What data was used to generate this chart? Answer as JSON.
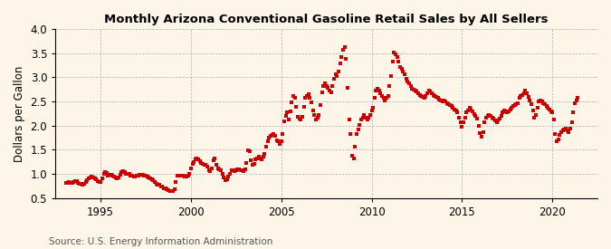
{
  "title": "Monthly Arizona Conventional Gasoline Retail Sales by All Sellers",
  "ylabel": "Dollars per Gallon",
  "source": "Source: U.S. Energy Information Administration",
  "background_color": "#fdf6e8",
  "marker_color": "#cc0000",
  "ylim": [
    0.5,
    4.0
  ],
  "yticks": [
    0.5,
    1.0,
    1.5,
    2.0,
    2.5,
    3.0,
    3.5,
    4.0
  ],
  "xlim_start": 1992.5,
  "xlim_end": 2022.5,
  "xticks": [
    1995,
    2000,
    2005,
    2010,
    2015,
    2020
  ],
  "data": [
    [
      1993.08,
      0.81
    ],
    [
      1993.17,
      0.82
    ],
    [
      1993.25,
      0.83
    ],
    [
      1993.33,
      0.82
    ],
    [
      1993.42,
      0.82
    ],
    [
      1993.5,
      0.83
    ],
    [
      1993.58,
      0.86
    ],
    [
      1993.67,
      0.85
    ],
    [
      1993.75,
      0.82
    ],
    [
      1993.83,
      0.8
    ],
    [
      1993.92,
      0.79
    ],
    [
      1994.0,
      0.78
    ],
    [
      1994.08,
      0.8
    ],
    [
      1994.17,
      0.83
    ],
    [
      1994.25,
      0.87
    ],
    [
      1994.33,
      0.9
    ],
    [
      1994.42,
      0.93
    ],
    [
      1994.5,
      0.95
    ],
    [
      1994.58,
      0.93
    ],
    [
      1994.67,
      0.9
    ],
    [
      1994.75,
      0.88
    ],
    [
      1994.83,
      0.86
    ],
    [
      1994.92,
      0.84
    ],
    [
      1995.0,
      0.84
    ],
    [
      1995.08,
      0.91
    ],
    [
      1995.17,
      1.0
    ],
    [
      1995.25,
      1.04
    ],
    [
      1995.33,
      1.02
    ],
    [
      1995.42,
      0.97
    ],
    [
      1995.5,
      0.98
    ],
    [
      1995.58,
      0.99
    ],
    [
      1995.67,
      0.96
    ],
    [
      1995.75,
      0.94
    ],
    [
      1995.83,
      0.93
    ],
    [
      1995.92,
      0.91
    ],
    [
      1996.0,
      0.93
    ],
    [
      1996.08,
      0.98
    ],
    [
      1996.17,
      1.03
    ],
    [
      1996.25,
      1.06
    ],
    [
      1996.33,
      1.04
    ],
    [
      1996.42,
      1.0
    ],
    [
      1996.5,
      1.01
    ],
    [
      1996.58,
      1.0
    ],
    [
      1996.67,
      0.97
    ],
    [
      1996.75,
      0.97
    ],
    [
      1996.83,
      0.95
    ],
    [
      1996.92,
      0.95
    ],
    [
      1997.0,
      0.96
    ],
    [
      1997.08,
      0.97
    ],
    [
      1997.17,
      0.98
    ],
    [
      1997.25,
      0.99
    ],
    [
      1997.33,
      0.98
    ],
    [
      1997.42,
      0.97
    ],
    [
      1997.5,
      0.96
    ],
    [
      1997.58,
      0.95
    ],
    [
      1997.67,
      0.93
    ],
    [
      1997.75,
      0.91
    ],
    [
      1997.83,
      0.89
    ],
    [
      1997.92,
      0.87
    ],
    [
      1998.0,
      0.83
    ],
    [
      1998.08,
      0.79
    ],
    [
      1998.17,
      0.78
    ],
    [
      1998.25,
      0.77
    ],
    [
      1998.33,
      0.74
    ],
    [
      1998.42,
      0.73
    ],
    [
      1998.5,
      0.71
    ],
    [
      1998.58,
      0.7
    ],
    [
      1998.67,
      0.68
    ],
    [
      1998.75,
      0.66
    ],
    [
      1998.83,
      0.65
    ],
    [
      1998.92,
      0.64
    ],
    [
      1999.0,
      0.65
    ],
    [
      1999.08,
      0.68
    ],
    [
      1999.17,
      0.84
    ],
    [
      1999.25,
      0.97
    ],
    [
      1999.33,
      0.97
    ],
    [
      1999.42,
      0.97
    ],
    [
      1999.5,
      0.97
    ],
    [
      1999.58,
      0.96
    ],
    [
      1999.67,
      0.95
    ],
    [
      1999.75,
      0.95
    ],
    [
      1999.83,
      0.96
    ],
    [
      1999.92,
      1.0
    ],
    [
      2000.0,
      1.12
    ],
    [
      2000.08,
      1.2
    ],
    [
      2000.17,
      1.25
    ],
    [
      2000.25,
      1.3
    ],
    [
      2000.33,
      1.32
    ],
    [
      2000.42,
      1.3
    ],
    [
      2000.5,
      1.27
    ],
    [
      2000.58,
      1.22
    ],
    [
      2000.67,
      1.2
    ],
    [
      2000.75,
      1.19
    ],
    [
      2000.83,
      1.18
    ],
    [
      2000.92,
      1.15
    ],
    [
      2001.0,
      1.08
    ],
    [
      2001.08,
      1.05
    ],
    [
      2001.17,
      1.12
    ],
    [
      2001.25,
      1.28
    ],
    [
      2001.33,
      1.32
    ],
    [
      2001.42,
      1.18
    ],
    [
      2001.5,
      1.12
    ],
    [
      2001.58,
      1.1
    ],
    [
      2001.67,
      1.07
    ],
    [
      2001.75,
      1.0
    ],
    [
      2001.83,
      0.92
    ],
    [
      2001.92,
      0.87
    ],
    [
      2002.0,
      0.89
    ],
    [
      2002.08,
      0.95
    ],
    [
      2002.17,
      1.0
    ],
    [
      2002.25,
      1.08
    ],
    [
      2002.33,
      1.08
    ],
    [
      2002.42,
      1.05
    ],
    [
      2002.5,
      1.07
    ],
    [
      2002.58,
      1.1
    ],
    [
      2002.67,
      1.1
    ],
    [
      2002.75,
      1.08
    ],
    [
      2002.83,
      1.07
    ],
    [
      2002.92,
      1.05
    ],
    [
      2003.0,
      1.09
    ],
    [
      2003.08,
      1.22
    ],
    [
      2003.17,
      1.48
    ],
    [
      2003.25,
      1.47
    ],
    [
      2003.33,
      1.28
    ],
    [
      2003.42,
      1.18
    ],
    [
      2003.5,
      1.2
    ],
    [
      2003.58,
      1.3
    ],
    [
      2003.67,
      1.32
    ],
    [
      2003.75,
      1.35
    ],
    [
      2003.83,
      1.32
    ],
    [
      2003.92,
      1.3
    ],
    [
      2004.0,
      1.36
    ],
    [
      2004.08,
      1.42
    ],
    [
      2004.17,
      1.57
    ],
    [
      2004.25,
      1.67
    ],
    [
      2004.33,
      1.75
    ],
    [
      2004.42,
      1.78
    ],
    [
      2004.5,
      1.8
    ],
    [
      2004.58,
      1.82
    ],
    [
      2004.67,
      1.78
    ],
    [
      2004.75,
      1.7
    ],
    [
      2004.83,
      1.68
    ],
    [
      2004.92,
      1.62
    ],
    [
      2005.0,
      1.68
    ],
    [
      2005.08,
      1.82
    ],
    [
      2005.17,
      2.08
    ],
    [
      2005.25,
      2.2
    ],
    [
      2005.33,
      2.28
    ],
    [
      2005.42,
      2.12
    ],
    [
      2005.5,
      2.3
    ],
    [
      2005.58,
      2.48
    ],
    [
      2005.67,
      2.62
    ],
    [
      2005.75,
      2.57
    ],
    [
      2005.83,
      2.38
    ],
    [
      2005.92,
      2.18
    ],
    [
      2006.0,
      2.14
    ],
    [
      2006.08,
      2.12
    ],
    [
      2006.17,
      2.18
    ],
    [
      2006.25,
      2.38
    ],
    [
      2006.33,
      2.58
    ],
    [
      2006.42,
      2.62
    ],
    [
      2006.5,
      2.65
    ],
    [
      2006.58,
      2.57
    ],
    [
      2006.67,
      2.48
    ],
    [
      2006.75,
      2.32
    ],
    [
      2006.83,
      2.22
    ],
    [
      2006.92,
      2.12
    ],
    [
      2007.0,
      2.17
    ],
    [
      2007.08,
      2.22
    ],
    [
      2007.17,
      2.42
    ],
    [
      2007.25,
      2.68
    ],
    [
      2007.33,
      2.82
    ],
    [
      2007.42,
      2.87
    ],
    [
      2007.5,
      2.82
    ],
    [
      2007.58,
      2.78
    ],
    [
      2007.67,
      2.72
    ],
    [
      2007.75,
      2.68
    ],
    [
      2007.83,
      2.82
    ],
    [
      2007.92,
      2.97
    ],
    [
      2008.0,
      3.07
    ],
    [
      2008.08,
      3.02
    ],
    [
      2008.17,
      3.12
    ],
    [
      2008.25,
      3.28
    ],
    [
      2008.33,
      3.42
    ],
    [
      2008.42,
      3.57
    ],
    [
      2008.5,
      3.62
    ],
    [
      2008.58,
      3.38
    ],
    [
      2008.67,
      2.78
    ],
    [
      2008.75,
      2.12
    ],
    [
      2008.83,
      1.82
    ],
    [
      2008.92,
      1.38
    ],
    [
      2009.0,
      1.32
    ],
    [
      2009.08,
      1.57
    ],
    [
      2009.17,
      1.82
    ],
    [
      2009.25,
      1.92
    ],
    [
      2009.33,
      2.02
    ],
    [
      2009.42,
      2.12
    ],
    [
      2009.5,
      2.17
    ],
    [
      2009.58,
      2.22
    ],
    [
      2009.67,
      2.17
    ],
    [
      2009.75,
      2.12
    ],
    [
      2009.83,
      2.17
    ],
    [
      2009.92,
      2.22
    ],
    [
      2010.0,
      2.32
    ],
    [
      2010.08,
      2.37
    ],
    [
      2010.17,
      2.57
    ],
    [
      2010.25,
      2.72
    ],
    [
      2010.33,
      2.77
    ],
    [
      2010.42,
      2.72
    ],
    [
      2010.5,
      2.67
    ],
    [
      2010.58,
      2.62
    ],
    [
      2010.67,
      2.57
    ],
    [
      2010.75,
      2.52
    ],
    [
      2010.83,
      2.57
    ],
    [
      2010.92,
      2.62
    ],
    [
      2011.0,
      2.82
    ],
    [
      2011.08,
      3.02
    ],
    [
      2011.17,
      3.32
    ],
    [
      2011.25,
      3.52
    ],
    [
      2011.33,
      3.47
    ],
    [
      2011.42,
      3.42
    ],
    [
      2011.5,
      3.32
    ],
    [
      2011.58,
      3.22
    ],
    [
      2011.67,
      3.17
    ],
    [
      2011.75,
      3.12
    ],
    [
      2011.83,
      3.07
    ],
    [
      2011.92,
      2.97
    ],
    [
      2012.0,
      2.92
    ],
    [
      2012.08,
      2.87
    ],
    [
      2012.17,
      2.82
    ],
    [
      2012.25,
      2.77
    ],
    [
      2012.33,
      2.74
    ],
    [
      2012.42,
      2.72
    ],
    [
      2012.5,
      2.7
    ],
    [
      2012.58,
      2.67
    ],
    [
      2012.67,
      2.64
    ],
    [
      2012.75,
      2.62
    ],
    [
      2012.83,
      2.6
    ],
    [
      2012.92,
      2.57
    ],
    [
      2013.0,
      2.62
    ],
    [
      2013.08,
      2.67
    ],
    [
      2013.17,
      2.72
    ],
    [
      2013.25,
      2.7
    ],
    [
      2013.33,
      2.67
    ],
    [
      2013.42,
      2.64
    ],
    [
      2013.5,
      2.62
    ],
    [
      2013.58,
      2.6
    ],
    [
      2013.67,
      2.57
    ],
    [
      2013.75,
      2.54
    ],
    [
      2013.83,
      2.52
    ],
    [
      2013.92,
      2.5
    ],
    [
      2014.0,
      2.52
    ],
    [
      2014.08,
      2.5
    ],
    [
      2014.17,
      2.47
    ],
    [
      2014.25,
      2.44
    ],
    [
      2014.33,
      2.42
    ],
    [
      2014.42,
      2.4
    ],
    [
      2014.5,
      2.37
    ],
    [
      2014.58,
      2.34
    ],
    [
      2014.67,
      2.32
    ],
    [
      2014.75,
      2.27
    ],
    [
      2014.83,
      2.17
    ],
    [
      2014.92,
      2.07
    ],
    [
      2015.0,
      1.97
    ],
    [
      2015.08,
      2.07
    ],
    [
      2015.17,
      2.17
    ],
    [
      2015.25,
      2.27
    ],
    [
      2015.33,
      2.32
    ],
    [
      2015.42,
      2.37
    ],
    [
      2015.5,
      2.34
    ],
    [
      2015.58,
      2.3
    ],
    [
      2015.67,
      2.24
    ],
    [
      2015.75,
      2.2
    ],
    [
      2015.83,
      2.14
    ],
    [
      2015.92,
      2.0
    ],
    [
      2016.0,
      1.84
    ],
    [
      2016.08,
      1.77
    ],
    [
      2016.17,
      1.87
    ],
    [
      2016.25,
      2.07
    ],
    [
      2016.33,
      2.17
    ],
    [
      2016.42,
      2.2
    ],
    [
      2016.5,
      2.22
    ],
    [
      2016.58,
      2.2
    ],
    [
      2016.67,
      2.17
    ],
    [
      2016.75,
      2.14
    ],
    [
      2016.83,
      2.1
    ],
    [
      2016.92,
      2.07
    ],
    [
      2017.0,
      2.1
    ],
    [
      2017.08,
      2.14
    ],
    [
      2017.17,
      2.2
    ],
    [
      2017.25,
      2.27
    ],
    [
      2017.33,
      2.32
    ],
    [
      2017.42,
      2.3
    ],
    [
      2017.5,
      2.27
    ],
    [
      2017.58,
      2.3
    ],
    [
      2017.67,
      2.34
    ],
    [
      2017.75,
      2.37
    ],
    [
      2017.83,
      2.4
    ],
    [
      2017.92,
      2.42
    ],
    [
      2018.0,
      2.44
    ],
    [
      2018.08,
      2.47
    ],
    [
      2018.17,
      2.57
    ],
    [
      2018.25,
      2.62
    ],
    [
      2018.33,
      2.64
    ],
    [
      2018.42,
      2.67
    ],
    [
      2018.5,
      2.72
    ],
    [
      2018.58,
      2.67
    ],
    [
      2018.67,
      2.6
    ],
    [
      2018.75,
      2.52
    ],
    [
      2018.83,
      2.44
    ],
    [
      2018.92,
      2.32
    ],
    [
      2019.0,
      2.17
    ],
    [
      2019.08,
      2.22
    ],
    [
      2019.17,
      2.37
    ],
    [
      2019.25,
      2.5
    ],
    [
      2019.33,
      2.52
    ],
    [
      2019.42,
      2.5
    ],
    [
      2019.5,
      2.47
    ],
    [
      2019.58,
      2.44
    ],
    [
      2019.67,
      2.4
    ],
    [
      2019.75,
      2.37
    ],
    [
      2019.83,
      2.34
    ],
    [
      2019.92,
      2.3
    ],
    [
      2020.0,
      2.27
    ],
    [
      2020.08,
      2.12
    ],
    [
      2020.17,
      1.82
    ],
    [
      2020.25,
      1.67
    ],
    [
      2020.33,
      1.72
    ],
    [
      2020.42,
      1.8
    ],
    [
      2020.5,
      1.87
    ],
    [
      2020.58,
      1.9
    ],
    [
      2020.67,
      1.92
    ],
    [
      2020.75,
      1.94
    ],
    [
      2020.83,
      1.9
    ],
    [
      2020.92,
      1.87
    ],
    [
      2021.0,
      1.94
    ],
    [
      2021.08,
      2.07
    ],
    [
      2021.17,
      2.27
    ],
    [
      2021.25,
      2.47
    ],
    [
      2021.33,
      2.52
    ],
    [
      2021.42,
      2.57
    ]
  ]
}
